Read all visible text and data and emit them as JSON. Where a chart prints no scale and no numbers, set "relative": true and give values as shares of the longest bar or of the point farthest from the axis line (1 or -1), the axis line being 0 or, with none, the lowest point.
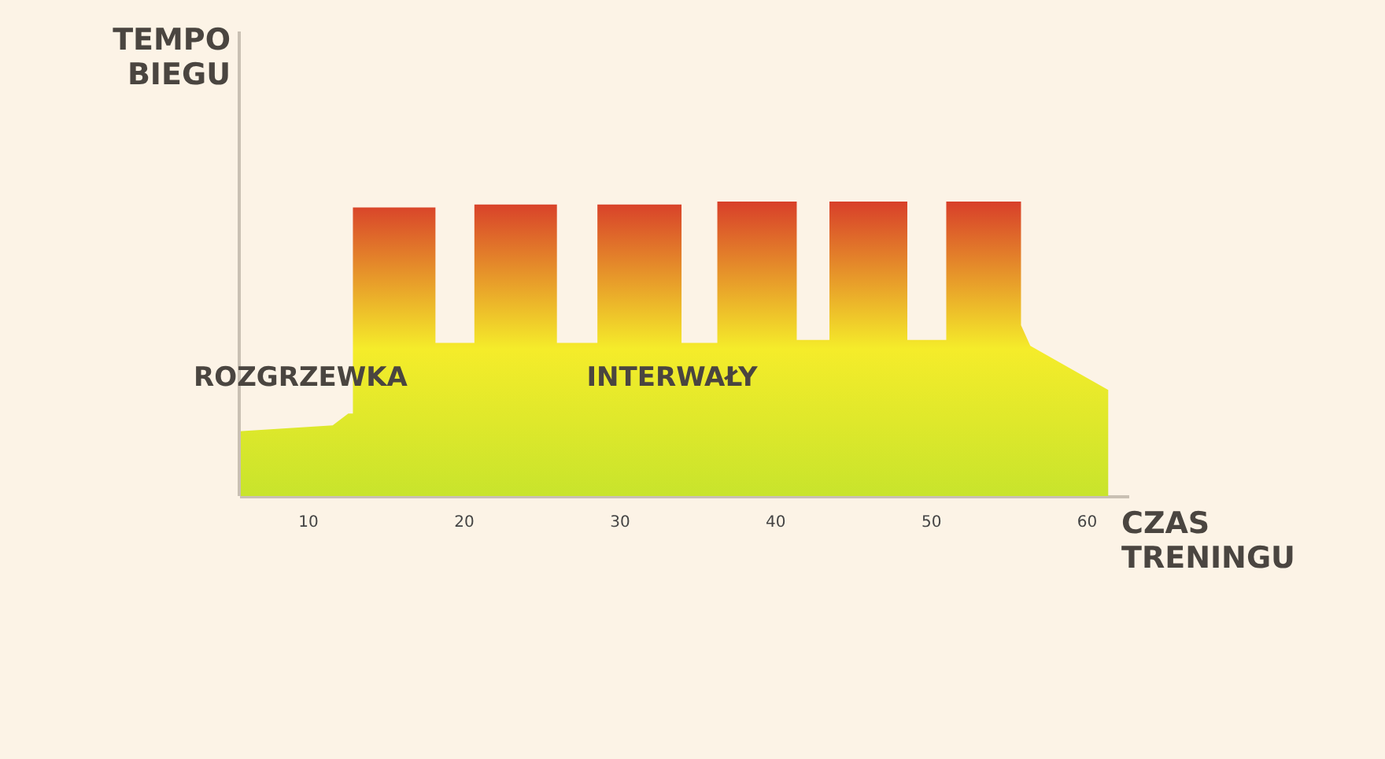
{
  "chart_data": {
    "type": "area",
    "relative": true,
    "xlabel": "CZAS TRENINGU",
    "ylabel": "TEMPO BIEGU",
    "annotations": [
      "ROZGRZEWKA",
      "INTERWAŁY"
    ],
    "xlim": [
      5.6,
      62.7
    ],
    "xticks": [
      10,
      20,
      30,
      40,
      50,
      60
    ],
    "series": [
      {
        "color": "#f5ec2a",
        "x": [
          5.6,
          11.6,
          12.6,
          12.9,
          12.9,
          18.2,
          18.2,
          20.7,
          20.7,
          26.0,
          26.0,
          28.6,
          28.6,
          34.0,
          34.0,
          36.3,
          36.3,
          41.4,
          41.4,
          43.5,
          43.5,
          48.5,
          48.5,
          51.0,
          51.0,
          55.8,
          55.8,
          56.4,
          61.4
        ],
        "values": [
          0.22,
          0.24,
          0.28,
          0.28,
          0.98,
          0.98,
          0.52,
          0.52,
          0.99,
          0.99,
          0.52,
          0.52,
          0.99,
          0.99,
          0.52,
          0.52,
          1,
          1,
          0.53,
          0.53,
          1,
          1,
          0.53,
          0.53,
          1,
          1,
          0.58,
          0.51,
          0.36
        ]
      }
    ]
  }
}
